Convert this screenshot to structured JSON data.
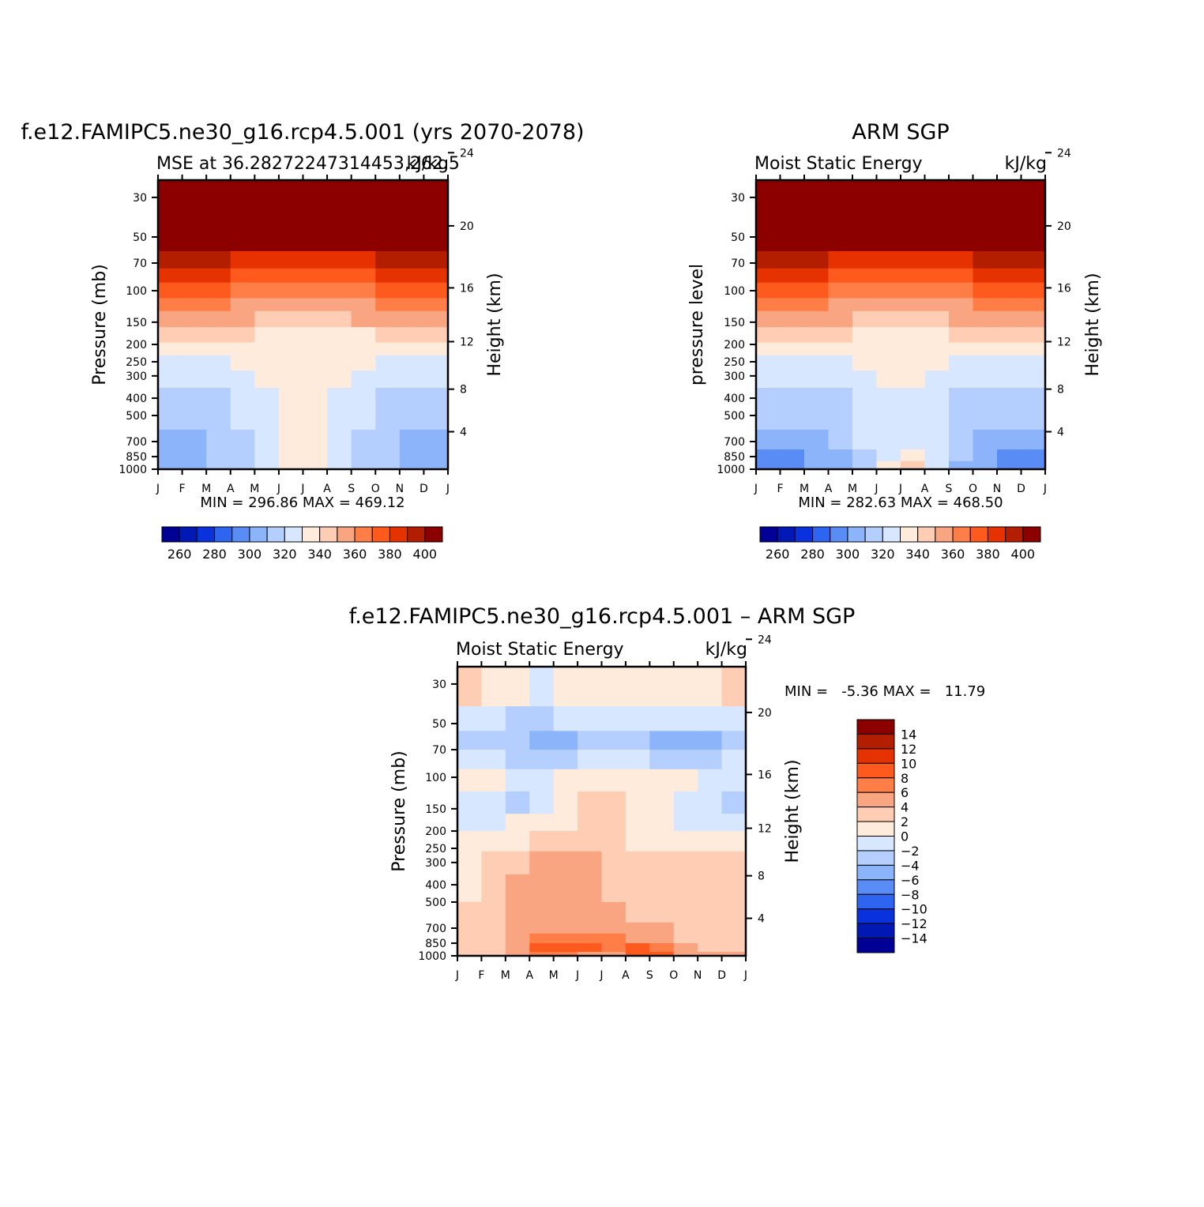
{
  "chart_data": [
    {
      "type": "heatmap",
      "title": "f.e12.FAMIPC5.ne30_g16.rcp4.5.001 (yrs 2070-2078)",
      "left_label": "MSE at 36.28272247314453,262.5",
      "right_label": "kJ/kg",
      "ylabel": "Pressure (mb)",
      "ylabel_right": "Height (km)",
      "x_ticks": [
        "J",
        "F",
        "M",
        "A",
        "M",
        "J",
        "J",
        "A",
        "S",
        "O",
        "N",
        "D",
        "J"
      ],
      "y_ticks": [
        "30",
        "50",
        "70",
        "100",
        "150",
        "200",
        "250",
        "300",
        "400",
        "500",
        "700",
        "850",
        "1000"
      ],
      "y_ticks_right": [
        "24",
        "20",
        "16",
        "12",
        "8",
        "4"
      ],
      "stats": "MIN = 296.86 MAX = 469.12",
      "colorbar": {
        "labels": [
          "260",
          "280",
          "300",
          "320",
          "340",
          "360",
          "380",
          "400"
        ]
      },
      "levels": [
        {
          "top": 30,
          "values": [
            400,
            400,
            400,
            400,
            400,
            400,
            400,
            400,
            400,
            400,
            400,
            400,
            400
          ]
        },
        {
          "top": 60,
          "values": [
            392,
            391,
            391,
            390,
            389,
            388,
            387,
            388,
            389,
            390,
            391,
            392,
            392
          ]
        },
        {
          "top": 75,
          "values": [
            382,
            381,
            380,
            380,
            379,
            378,
            377,
            378,
            379,
            380,
            381,
            382,
            382
          ]
        },
        {
          "top": 90,
          "values": [
            372,
            371,
            370,
            370,
            369,
            368,
            367,
            368,
            369,
            370,
            371,
            372,
            372
          ]
        },
        {
          "top": 110,
          "values": [
            362,
            361,
            361,
            360,
            359,
            358,
            357,
            358,
            359,
            360,
            361,
            362,
            362
          ]
        },
        {
          "top": 130,
          "values": [
            352,
            351,
            351,
            350,
            350,
            349,
            348,
            349,
            350,
            350,
            351,
            352,
            352
          ]
        },
        {
          "top": 160,
          "values": [
            343,
            342,
            342,
            341,
            340,
            338,
            337,
            338,
            339,
            340,
            341,
            342,
            343
          ]
        },
        {
          "top": 195,
          "values": [
            333,
            333,
            334,
            335,
            335,
            335,
            335,
            335,
            335,
            336,
            336,
            335,
            333
          ]
        },
        {
          "top": 230,
          "values": [
            328,
            328,
            329,
            330,
            331,
            332,
            333,
            332,
            331,
            330,
            329,
            328,
            328
          ]
        },
        {
          "top": 280,
          "values": [
            325,
            325,
            326,
            327,
            329,
            331,
            332,
            331,
            329,
            327,
            326,
            325,
            325
          ]
        },
        {
          "top": 350,
          "values": [
            318,
            317,
            318,
            320,
            325,
            330,
            332,
            330,
            325,
            320,
            318,
            317,
            318
          ]
        },
        {
          "top": 450,
          "values": [
            314,
            313,
            314,
            317,
            323,
            330,
            332,
            330,
            323,
            317,
            314,
            313,
            314
          ]
        },
        {
          "top": 600,
          "values": [
            310,
            309,
            310,
            315,
            322,
            331,
            333,
            331,
            322,
            315,
            310,
            309,
            310
          ]
        },
        {
          "top": 775,
          "values": [
            305,
            304,
            307,
            313,
            321,
            332,
            335,
            332,
            321,
            313,
            307,
            304,
            305
          ]
        },
        {
          "top": 900,
          "values": [
            299,
            302,
            307,
            313,
            321,
            333,
            340,
            335,
            321,
            313,
            307,
            302,
            299
          ]
        }
      ]
    },
    {
      "type": "heatmap",
      "title": "ARM SGP",
      "left_label": "Moist Static Energy",
      "right_label": "kJ/kg",
      "ylabel": "pressure level",
      "ylabel_right": "Height (km)",
      "x_ticks": [
        "J",
        "F",
        "M",
        "A",
        "M",
        "J",
        "J",
        "A",
        "S",
        "O",
        "N",
        "D",
        "J"
      ],
      "y_ticks": [
        "30",
        "50",
        "70",
        "100",
        "150",
        "200",
        "250",
        "300",
        "400",
        "500",
        "700",
        "850",
        "1000"
      ],
      "y_ticks_right": [
        "24",
        "20",
        "16",
        "12",
        "8",
        "4"
      ],
      "stats": "MIN = 282.63 MAX = 468.50",
      "colorbar": {
        "labels": [
          "260",
          "280",
          "300",
          "320",
          "340",
          "360",
          "380",
          "400"
        ]
      },
      "levels": [
        {
          "top": 30,
          "values": [
            400,
            400,
            400,
            400,
            400,
            400,
            400,
            400,
            400,
            400,
            400,
            400,
            400
          ]
        },
        {
          "top": 60,
          "values": [
            392,
            391,
            391,
            390,
            389,
            388,
            387,
            388,
            389,
            390,
            391,
            392,
            392
          ]
        },
        {
          "top": 75,
          "values": [
            382,
            381,
            380,
            380,
            379,
            378,
            377,
            378,
            379,
            380,
            381,
            382,
            382
          ]
        },
        {
          "top": 90,
          "values": [
            372,
            371,
            370,
            370,
            369,
            368,
            367,
            368,
            369,
            370,
            371,
            372,
            372
          ]
        },
        {
          "top": 110,
          "values": [
            362,
            361,
            361,
            360,
            359,
            358,
            357,
            358,
            359,
            360,
            361,
            362,
            362
          ]
        },
        {
          "top": 130,
          "values": [
            352,
            351,
            351,
            350,
            350,
            349,
            348,
            349,
            350,
            350,
            351,
            352,
            352
          ]
        },
        {
          "top": 160,
          "values": [
            343,
            342,
            342,
            341,
            340,
            339,
            338,
            339,
            340,
            341,
            342,
            343,
            343
          ]
        },
        {
          "top": 195,
          "values": [
            334,
            334,
            334,
            334,
            335,
            335,
            335,
            335,
            335,
            335,
            334,
            334,
            334
          ]
        },
        {
          "top": 230,
          "values": [
            328,
            328,
            328,
            329,
            330,
            331,
            332,
            331,
            330,
            329,
            328,
            328,
            328
          ]
        },
        {
          "top": 280,
          "values": [
            321,
            321,
            322,
            324,
            327,
            330,
            332,
            330,
            327,
            324,
            322,
            321,
            321
          ]
        },
        {
          "top": 350,
          "values": [
            314,
            314,
            315,
            317,
            321,
            325,
            332,
            325,
            320,
            316,
            314,
            314,
            314
          ]
        },
        {
          "top": 450,
          "values": [
            311,
            310,
            311,
            314,
            318,
            323,
            330,
            323,
            317,
            313,
            311,
            310,
            311
          ]
        },
        {
          "top": 600,
          "values": [
            305,
            304,
            306,
            310,
            316,
            324,
            325,
            324,
            316,
            310,
            306,
            304,
            305
          ]
        },
        {
          "top": 775,
          "values": [
            298,
            297,
            300,
            305,
            313,
            325,
            332,
            328,
            314,
            306,
            300,
            297,
            298
          ]
        },
        {
          "top": 900,
          "values": [
            292,
            293,
            297,
            303,
            312,
            325,
            345,
            335,
            314,
            303,
            297,
            293,
            292
          ]
        }
      ]
    },
    {
      "type": "heatmap",
      "title": "f.e12.FAMIPC5.ne30_g16.rcp4.5.001 – ARM SGP",
      "left_label": "Moist Static Energy",
      "right_label": "kJ/kg",
      "ylabel": "Pressure (mb)",
      "ylabel_right": "Height (km)",
      "x_ticks": [
        "J",
        "F",
        "M",
        "A",
        "M",
        "J",
        "J",
        "A",
        "S",
        "O",
        "N",
        "D",
        "J"
      ],
      "y_ticks": [
        "30",
        "50",
        "70",
        "100",
        "150",
        "200",
        "250",
        "300",
        "400",
        "500",
        "700",
        "850",
        "1000"
      ],
      "y_ticks_right": [
        "24",
        "20",
        "16",
        "12",
        "8",
        "4"
      ],
      "stats": "MIN =   -5.36 MAX =   11.79",
      "colorbar": {
        "labels": [
          "14",
          "12",
          "10",
          "8",
          "6",
          "4",
          "2",
          "0",
          "−2",
          "−4",
          "−6",
          "−8",
          "−10",
          "−12",
          "−14"
        ]
      },
      "levels": [
        {
          "top": 30,
          "values": [
            3,
            2,
            1,
            -1,
            -1,
            1,
            1,
            -1,
            1,
            1,
            -1,
            1,
            3
          ]
        },
        {
          "top": 40,
          "values": [
            -1,
            -1,
            -2,
            -3,
            -2,
            -1,
            -2,
            -2,
            -1,
            -2,
            -2,
            -2,
            -1
          ]
        },
        {
          "top": 55,
          "values": [
            -3,
            -2,
            -3,
            -5,
            -5,
            -4,
            -3,
            -3,
            -5,
            -5,
            -5,
            -5,
            -3
          ]
        },
        {
          "top": 70,
          "values": [
            -1,
            -1,
            -2,
            -3,
            -3,
            -2,
            -2,
            -2,
            -2,
            -3,
            -3,
            -2,
            -1
          ]
        },
        {
          "top": 90,
          "values": [
            1,
            1,
            -1,
            -1,
            -1,
            1,
            1,
            1,
            1,
            1,
            -1,
            -1,
            -1
          ]
        },
        {
          "top": 120,
          "values": [
            -1,
            -1,
            -2,
            -3,
            -1,
            1,
            3,
            1,
            1,
            -1,
            -1,
            -2,
            -3
          ]
        },
        {
          "top": 160,
          "values": [
            -2,
            -1,
            -1,
            1,
            1,
            2,
            3,
            2,
            1,
            -1,
            -1,
            -1,
            -2
          ]
        },
        {
          "top": 200,
          "values": [
            1,
            1,
            1,
            2,
            2,
            2,
            2,
            2,
            1,
            1,
            1,
            1,
            1
          ]
        },
        {
          "top": 260,
          "values": [
            1,
            2,
            3,
            3,
            5,
            5,
            3,
            3,
            3,
            2,
            3,
            3,
            1
          ]
        },
        {
          "top": 350,
          "values": [
            1,
            2,
            3,
            5,
            5,
            5,
            3,
            3,
            3,
            1,
            3,
            3,
            1
          ]
        },
        {
          "top": 500,
          "values": [
            2,
            3,
            3,
            5,
            5,
            5,
            5,
            3,
            3,
            2,
            3,
            3,
            3
          ]
        },
        {
          "top": 650,
          "values": [
            3,
            3,
            3,
            5,
            5,
            5,
            5,
            5,
            5,
            3,
            3,
            3,
            3
          ]
        },
        {
          "top": 750,
          "values": [
            3,
            3,
            3,
            5,
            7,
            7,
            7,
            5,
            5,
            3,
            3,
            3,
            3
          ]
        },
        {
          "top": 850,
          "values": [
            3,
            3,
            3,
            7,
            9,
            9,
            7,
            7,
            9,
            5,
            3,
            3,
            3
          ]
        },
        {
          "top": 950,
          "values": [
            3,
            3,
            3,
            5,
            7,
            7,
            3,
            5,
            11,
            5,
            3,
            5,
            3
          ]
        }
      ]
    }
  ],
  "colors": {
    "abs_palette": [
      "#000096",
      "#0019B4",
      "#0A32DC",
      "#2D64F0",
      "#5A8CF5",
      "#8CB4FA",
      "#B4CFFD",
      "#D7E7FF",
      "#FFEBDB",
      "#FFCDB4",
      "#FAA582",
      "#FF7D46",
      "#FF5A1E",
      "#E63200",
      "#B41E00",
      "#8C0000"
    ],
    "diff_palette": [
      "#000096",
      "#0019B4",
      "#0A32DC",
      "#2D64F0",
      "#5A8CF5",
      "#8CB4FA",
      "#B4CFFD",
      "#D7E7FF",
      "#FFEBDB",
      "#FFCDB4",
      "#FAA582",
      "#FF7D46",
      "#FF5A1E",
      "#E63200",
      "#B41E00",
      "#8C0000"
    ]
  }
}
